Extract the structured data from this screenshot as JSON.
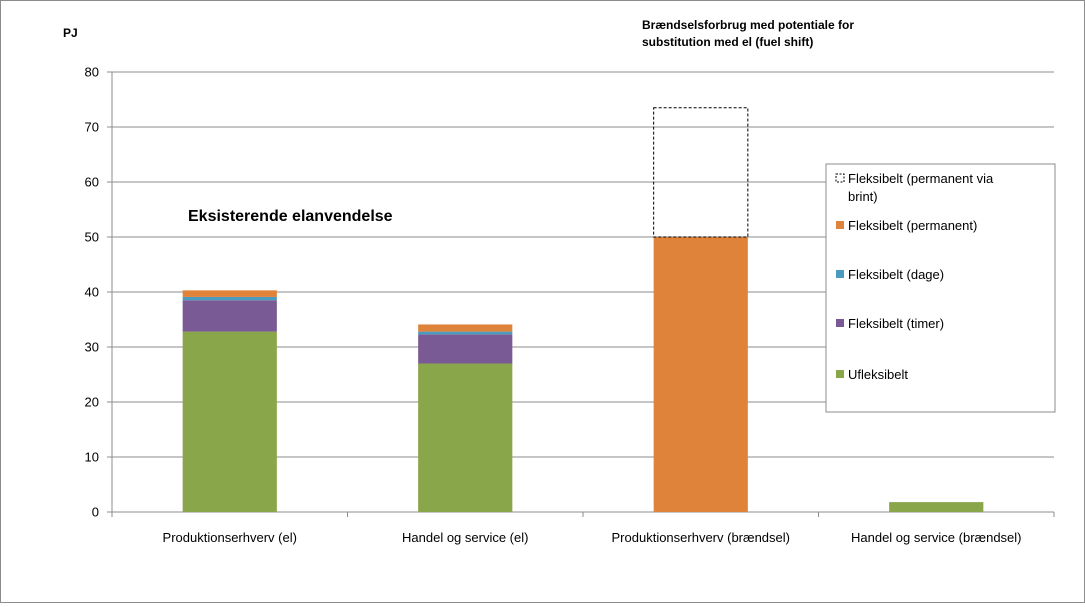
{
  "chart_data": {
    "type": "bar",
    "stacked": true,
    "ylabel": "PJ",
    "ylim": [
      0,
      80
    ],
    "yticks": [
      0,
      10,
      20,
      30,
      40,
      50,
      60,
      70,
      80
    ],
    "grid": true,
    "legend_position": "right",
    "categories": [
      "Produktionserhverv (el)",
      "Handel og service (el)",
      "Produktionserhverv (brændsel)",
      "Handel og service (brændsel)"
    ],
    "series": [
      {
        "name": "Ufleksibelt",
        "color": "#8aa64b",
        "values": [
          32.8,
          27.0,
          0,
          1.8
        ]
      },
      {
        "name": "Fleksibelt (timer)",
        "color": "#7a5a94",
        "values": [
          5.7,
          5.3,
          0,
          0
        ]
      },
      {
        "name": "Fleksibelt (dage)",
        "color": "#4b9bbf",
        "values": [
          0.6,
          0.5,
          0,
          0
        ]
      },
      {
        "name": "Fleksibelt (permanent)",
        "color": "#e0833a",
        "values": [
          1.2,
          1.3,
          50.0,
          0
        ]
      },
      {
        "name": "Fleksibelt (permanent via brint)",
        "color": "none",
        "dashed": true,
        "values": [
          0,
          0,
          23.5,
          0
        ]
      }
    ],
    "annotations": [
      {
        "id": "existing",
        "lines": [
          "Eksisterende elanvendelse"
        ]
      },
      {
        "id": "fuelshift",
        "lines": [
          "Brændselsforbrug med potentiale for",
          "substitution  med el (fuel shift)"
        ]
      }
    ]
  }
}
